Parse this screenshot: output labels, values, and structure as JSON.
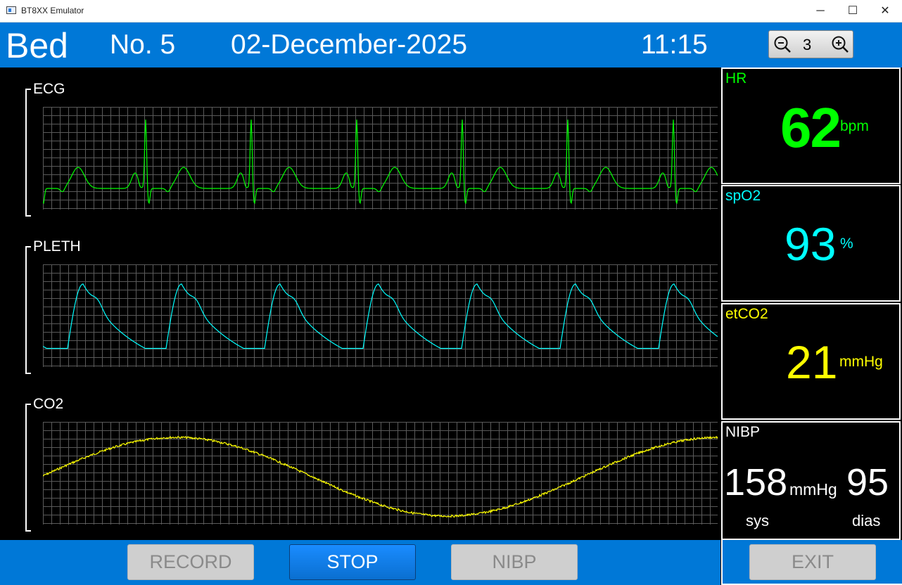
{
  "window": {
    "title": "BT8XX Emulator",
    "minimize_icon": "─",
    "maximize_icon": "☐",
    "close_icon": "✕"
  },
  "header": {
    "bed_label": "Bed",
    "bed_number": "No. 5",
    "date": "02-December-2025",
    "time": "11:15",
    "zoom_level": "3",
    "background": "#0078d7"
  },
  "waveforms": [
    {
      "label": "ECG",
      "color": "#00ff00"
    },
    {
      "label": "PLETH",
      "color": "#00ffff"
    },
    {
      "label": "CO2",
      "color": "#ffff00"
    }
  ],
  "vitals": {
    "hr": {
      "label": "HR",
      "value": "62",
      "unit": "bpm",
      "color": "#00ff00"
    },
    "spo2": {
      "label": "spO2",
      "value": "93",
      "unit": "%",
      "color": "#00ffff"
    },
    "etco2": {
      "label": "etCO2",
      "value": "21",
      "unit": "mmHg",
      "color": "#ffff00"
    },
    "nibp": {
      "label": "NIBP",
      "sys": "158",
      "unit": "mmHg",
      "dia": "95",
      "sys_label": "sys",
      "dia_label": "dias",
      "color": "#ffffff"
    }
  },
  "buttons": {
    "record": "RECORD",
    "stop": "STOP",
    "nibp": "NIBP",
    "exit": "EXIT"
  }
}
